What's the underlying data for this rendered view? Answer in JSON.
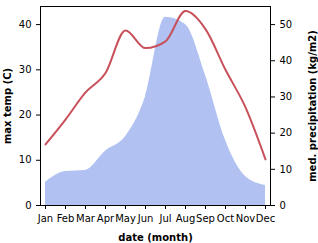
{
  "chart_data": {
    "type": "line",
    "x_label": "date (month)",
    "y_label": "max temp (C)",
    "y2_label": "med. precipitation (kg/m2)",
    "categories": [
      "Jan",
      "Feb",
      "Mar",
      "Apr",
      "May",
      "Jun",
      "Jul",
      "Aug",
      "Sep",
      "Oct",
      "Nov",
      "Dec"
    ],
    "ylim": [
      0,
      44
    ],
    "yticks": [
      0,
      10,
      20,
      30,
      40
    ],
    "y2lim": [
      0,
      55
    ],
    "y2ticks": [
      0,
      10,
      20,
      30,
      40,
      50
    ],
    "series": [
      {
        "name": "med. precipitation (kg/m2)",
        "type": "area",
        "axis": "y2",
        "color": "#b0c1f2",
        "values": [
          6.4,
          9.4,
          9.7,
          15,
          19,
          30,
          52,
          50,
          36,
          18,
          8,
          5.5
        ]
      },
      {
        "name": "max temp (C)",
        "type": "line",
        "color": "#c8505a",
        "values": [
          13.5,
          19,
          25,
          29.3,
          38.7,
          34.8,
          36.3,
          43,
          39,
          30,
          21.7,
          10.2
        ]
      }
    ]
  }
}
